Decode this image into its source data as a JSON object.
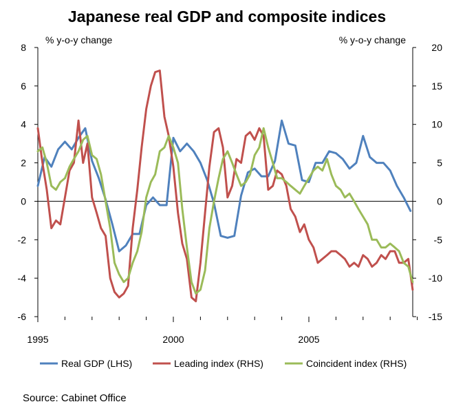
{
  "chart_data": {
    "type": "line",
    "title": "Japanese real GDP and composite indices",
    "left_axis_label": "% y-o-y change",
    "right_axis_label": "% y-o-y change",
    "source": "Source: Cabinet Office",
    "x_range": [
      1995.0,
      2009.0
    ],
    "x_ticks": [
      1995,
      2000,
      2005
    ],
    "ylim_left": [
      -6,
      8
    ],
    "yticks_left": [
      -6,
      -4,
      -2,
      0,
      2,
      4,
      6,
      8
    ],
    "ylim_right": [
      -15,
      20
    ],
    "yticks_right": [
      -15,
      -10,
      -5,
      0,
      5,
      10,
      15,
      20
    ],
    "legend_position": "bottom",
    "series": [
      {
        "name": "Real GDP (LHS)",
        "axis": "left",
        "color": "#4f81bd",
        "x": [
          1995.0,
          1995.25,
          1995.5,
          1995.75,
          1996.0,
          1996.25,
          1996.5,
          1996.75,
          1997.0,
          1997.25,
          1997.5,
          1997.75,
          1998.0,
          1998.25,
          1998.5,
          1998.75,
          1999.0,
          1999.25,
          1999.5,
          1999.75,
          2000.0,
          2000.25,
          2000.5,
          2000.75,
          2001.0,
          2001.25,
          2001.5,
          2001.75,
          2002.0,
          2002.25,
          2002.5,
          2002.75,
          2003.0,
          2003.25,
          2003.5,
          2003.75,
          2004.0,
          2004.25,
          2004.5,
          2004.75,
          2005.0,
          2005.25,
          2005.5,
          2005.75,
          2006.0,
          2006.25,
          2006.5,
          2006.75,
          2007.0,
          2007.25,
          2007.5,
          2007.75,
          2008.0,
          2008.25,
          2008.5,
          2008.75
        ],
        "values": [
          0.8,
          2.3,
          1.8,
          2.7,
          3.1,
          2.7,
          3.3,
          3.8,
          2.1,
          1.2,
          0.1,
          -1.2,
          -2.6,
          -2.3,
          -1.7,
          -1.7,
          -0.2,
          0.2,
          -0.2,
          -0.2,
          3.3,
          2.6,
          3.0,
          2.6,
          2.0,
          1.1,
          -0.1,
          -1.8,
          -1.9,
          -1.8,
          0.3,
          1.5,
          1.7,
          1.3,
          1.3,
          2.1,
          4.2,
          3.0,
          2.9,
          1.1,
          1.0,
          2.0,
          2.0,
          2.6,
          2.5,
          2.2,
          1.7,
          2.0,
          3.4,
          2.3,
          2.0,
          2.0,
          1.6,
          0.8,
          0.2,
          -0.5
        ]
      },
      {
        "name": "Leading index (RHS)",
        "axis": "right",
        "color": "#c0504d",
        "x": [
          1995.0,
          1995.17,
          1995.33,
          1995.5,
          1995.67,
          1995.83,
          1996.0,
          1996.17,
          1996.33,
          1996.5,
          1996.67,
          1996.83,
          1997.0,
          1997.17,
          1997.33,
          1997.5,
          1997.67,
          1997.83,
          1998.0,
          1998.17,
          1998.33,
          1998.5,
          1998.67,
          1998.83,
          1999.0,
          1999.17,
          1999.33,
          1999.5,
          1999.67,
          1999.83,
          2000.0,
          2000.17,
          2000.33,
          2000.5,
          2000.67,
          2000.83,
          2001.0,
          2001.17,
          2001.33,
          2001.5,
          2001.67,
          2001.83,
          2002.0,
          2002.17,
          2002.33,
          2002.5,
          2002.67,
          2002.83,
          2003.0,
          2003.17,
          2003.33,
          2003.5,
          2003.67,
          2003.83,
          2004.0,
          2004.17,
          2004.33,
          2004.5,
          2004.67,
          2004.83,
          2005.0,
          2005.17,
          2005.33,
          2005.5,
          2005.67,
          2005.83,
          2006.0,
          2006.17,
          2006.33,
          2006.5,
          2006.67,
          2006.83,
          2007.0,
          2007.17,
          2007.33,
          2007.5,
          2007.67,
          2007.83,
          2008.0,
          2008.17,
          2008.33,
          2008.5,
          2008.67,
          2008.83
        ],
        "values": [
          9.5,
          5.0,
          1.5,
          -3.5,
          -2.5,
          -3.0,
          0.5,
          4.0,
          5.0,
          10.5,
          5.0,
          7.5,
          0.5,
          -1.5,
          -3.5,
          -4.5,
          -10.0,
          -11.8,
          -12.5,
          -12.0,
          -11.0,
          -3.5,
          1.5,
          7.0,
          12.0,
          15.0,
          16.8,
          17.0,
          11.0,
          8.5,
          4.5,
          -1.5,
          -5.5,
          -7.5,
          -12.5,
          -13.0,
          -8.0,
          -1.5,
          4.5,
          9.0,
          9.5,
          7.0,
          0.5,
          2.0,
          5.5,
          5.0,
          8.5,
          9.0,
          8.0,
          9.5,
          8.5,
          1.5,
          2.0,
          4.0,
          3.5,
          2.0,
          -1.0,
          -2.0,
          -4.0,
          -3.0,
          -5.0,
          -6.0,
          -8.0,
          -7.5,
          -7.0,
          -6.5,
          -6.5,
          -7.0,
          -7.5,
          -8.5,
          -8.0,
          -8.5,
          -7.0,
          -7.5,
          -8.5,
          -8.0,
          -7.0,
          -7.5,
          -6.5,
          -6.5,
          -8.0,
          -8.0,
          -7.5,
          -11.5
        ]
      },
      {
        "name": "Coincident index (RHS)",
        "axis": "right",
        "color": "#9bbb59",
        "x": [
          1995.0,
          1995.17,
          1995.33,
          1995.5,
          1995.67,
          1995.83,
          1996.0,
          1996.17,
          1996.33,
          1996.5,
          1996.67,
          1996.83,
          1997.0,
          1997.17,
          1997.33,
          1997.5,
          1997.67,
          1997.83,
          1998.0,
          1998.17,
          1998.33,
          1998.5,
          1998.67,
          1998.83,
          1999.0,
          1999.17,
          1999.33,
          1999.5,
          1999.67,
          1999.83,
          2000.0,
          2000.17,
          2000.33,
          2000.5,
          2000.67,
          2000.83,
          2001.0,
          2001.17,
          2001.33,
          2001.5,
          2001.67,
          2001.83,
          2002.0,
          2002.17,
          2002.33,
          2002.5,
          2002.67,
          2002.83,
          2003.0,
          2003.17,
          2003.33,
          2003.5,
          2003.67,
          2003.83,
          2004.0,
          2004.17,
          2004.33,
          2004.5,
          2004.67,
          2004.83,
          2005.0,
          2005.17,
          2005.33,
          2005.5,
          2005.67,
          2005.83,
          2006.0,
          2006.17,
          2006.33,
          2006.5,
          2006.67,
          2006.83,
          2007.0,
          2007.17,
          2007.33,
          2007.5,
          2007.67,
          2007.83,
          2008.0,
          2008.17,
          2008.33,
          2008.5,
          2008.67,
          2008.83
        ],
        "values": [
          6.5,
          7.0,
          5.0,
          2.0,
          1.5,
          2.5,
          3.0,
          4.5,
          5.5,
          6.5,
          8.0,
          8.5,
          6.0,
          5.5,
          3.5,
          0.0,
          -3.5,
          -8.0,
          -9.5,
          -10.5,
          -10.0,
          -8.0,
          -6.5,
          -4.0,
          0.5,
          2.5,
          3.5,
          6.5,
          7.0,
          8.5,
          7.0,
          5.0,
          -1.0,
          -6.0,
          -10.5,
          -12.0,
          -11.5,
          -9.0,
          -3.5,
          0.0,
          3.0,
          5.5,
          6.5,
          5.0,
          3.5,
          2.0,
          2.5,
          3.5,
          6.0,
          7.0,
          9.5,
          7.0,
          5.0,
          3.0,
          3.0,
          2.5,
          2.0,
          1.5,
          1.0,
          2.0,
          3.0,
          4.0,
          4.5,
          4.0,
          5.5,
          3.5,
          2.0,
          1.5,
          0.5,
          1.0,
          0.0,
          -1.0,
          -2.0,
          -3.0,
          -5.0,
          -5.0,
          -6.0,
          -6.0,
          -5.5,
          -6.0,
          -6.5,
          -8.0,
          -8.5,
          -10.5
        ]
      }
    ]
  }
}
